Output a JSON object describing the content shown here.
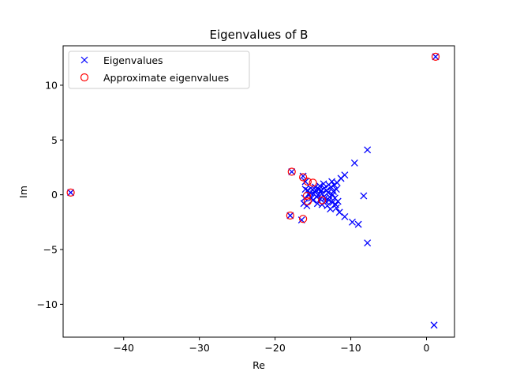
{
  "chart_data": {
    "type": "scatter",
    "title": "Eigenvalues of B",
    "xlabel": "Re",
    "ylabel": "Im",
    "xlim": [
      -48,
      3.7
    ],
    "ylim": [
      -13,
      13.6
    ],
    "x_ticks": [
      -40,
      -30,
      -20,
      -10,
      0
    ],
    "y_ticks": [
      -10,
      -5,
      0,
      5,
      10
    ],
    "x_tick_labels": [
      "−40",
      "−30",
      "−20",
      "−10",
      "0"
    ],
    "y_tick_labels": [
      "−10",
      "−5",
      "0",
      "5",
      "10"
    ],
    "grid": false,
    "legend_position": "top-left",
    "series": [
      {
        "name": "Eigenvalues",
        "marker": "x",
        "color": "#0000ff",
        "points": [
          [
            1.2,
            12.6
          ],
          [
            1.0,
            -11.9
          ],
          [
            -47.0,
            0.2
          ],
          [
            -7.8,
            4.1
          ],
          [
            -7.8,
            -4.4
          ],
          [
            -9.5,
            2.9
          ],
          [
            -9.0,
            -2.7
          ],
          [
            -8.3,
            -0.1
          ],
          [
            -9.8,
            -2.5
          ],
          [
            -10.8,
            1.8
          ],
          [
            -10.8,
            -2.0
          ],
          [
            -11.3,
            1.5
          ],
          [
            -11.5,
            -1.6
          ],
          [
            -17.8,
            2.1
          ],
          [
            -18.0,
            -1.9
          ],
          [
            -16.5,
            -2.3
          ],
          [
            -16.3,
            1.7
          ],
          [
            -16.0,
            1.2
          ],
          [
            -16.2,
            -0.8
          ],
          [
            -15.8,
            -1.0
          ],
          [
            -15.5,
            0.0
          ],
          [
            -15.3,
            0.6
          ],
          [
            -15.0,
            -0.5
          ],
          [
            -14.8,
            0.3
          ],
          [
            -14.5,
            -0.2
          ],
          [
            -14.2,
            0.5
          ],
          [
            -14.0,
            -0.4
          ],
          [
            -13.8,
            0.1
          ],
          [
            -13.5,
            0.6
          ],
          [
            -13.3,
            -0.6
          ],
          [
            -13.0,
            0.2
          ],
          [
            -12.8,
            -0.2
          ],
          [
            -12.6,
            0.7
          ],
          [
            -12.4,
            -0.7
          ],
          [
            -12.2,
            0.9
          ],
          [
            -12.0,
            -0.9
          ],
          [
            -11.8,
            1.1
          ],
          [
            -11.9,
            -1.2
          ],
          [
            -12.5,
            1.2
          ],
          [
            -12.7,
            -1.3
          ],
          [
            -12.9,
            0.9
          ],
          [
            -13.1,
            -1.0
          ],
          [
            -13.6,
            1.0
          ],
          [
            -13.8,
            -0.9
          ],
          [
            -14.1,
            0.8
          ],
          [
            -14.4,
            -0.8
          ],
          [
            -14.7,
            0.7
          ],
          [
            -15.2,
            -0.3
          ],
          [
            -15.7,
            0.4
          ],
          [
            -14.9,
            0.1
          ],
          [
            -13.2,
            0.4
          ],
          [
            -12.3,
            0.3
          ],
          [
            -12.1,
            -0.3
          ],
          [
            -11.9,
            0.5
          ],
          [
            -11.7,
            -0.6
          ],
          [
            -12.4,
            0.0
          ],
          [
            -13.4,
            -0.3
          ],
          [
            -14.6,
            0.4
          ],
          [
            -15.4,
            0.2
          ],
          [
            -16.0,
            0.5
          ],
          [
            -16.1,
            -0.3
          ],
          [
            -14.3,
            0.0
          ],
          [
            -13.9,
            0.4
          ],
          [
            -12.9,
            -0.5
          ]
        ]
      },
      {
        "name": "Approximate eigenvalues",
        "marker": "o",
        "color": "#ff0000",
        "points": [
          [
            1.2,
            12.6
          ],
          [
            -47.0,
            0.2
          ],
          [
            -17.8,
            2.1
          ],
          [
            -18.0,
            -1.9
          ],
          [
            -16.3,
            -2.2
          ],
          [
            -16.3,
            1.6
          ],
          [
            -15.7,
            1.2
          ],
          [
            -15.0,
            1.1
          ],
          [
            -15.8,
            -0.1
          ],
          [
            -15.7,
            -0.6
          ],
          [
            -13.8,
            -0.5
          ]
        ]
      }
    ]
  }
}
